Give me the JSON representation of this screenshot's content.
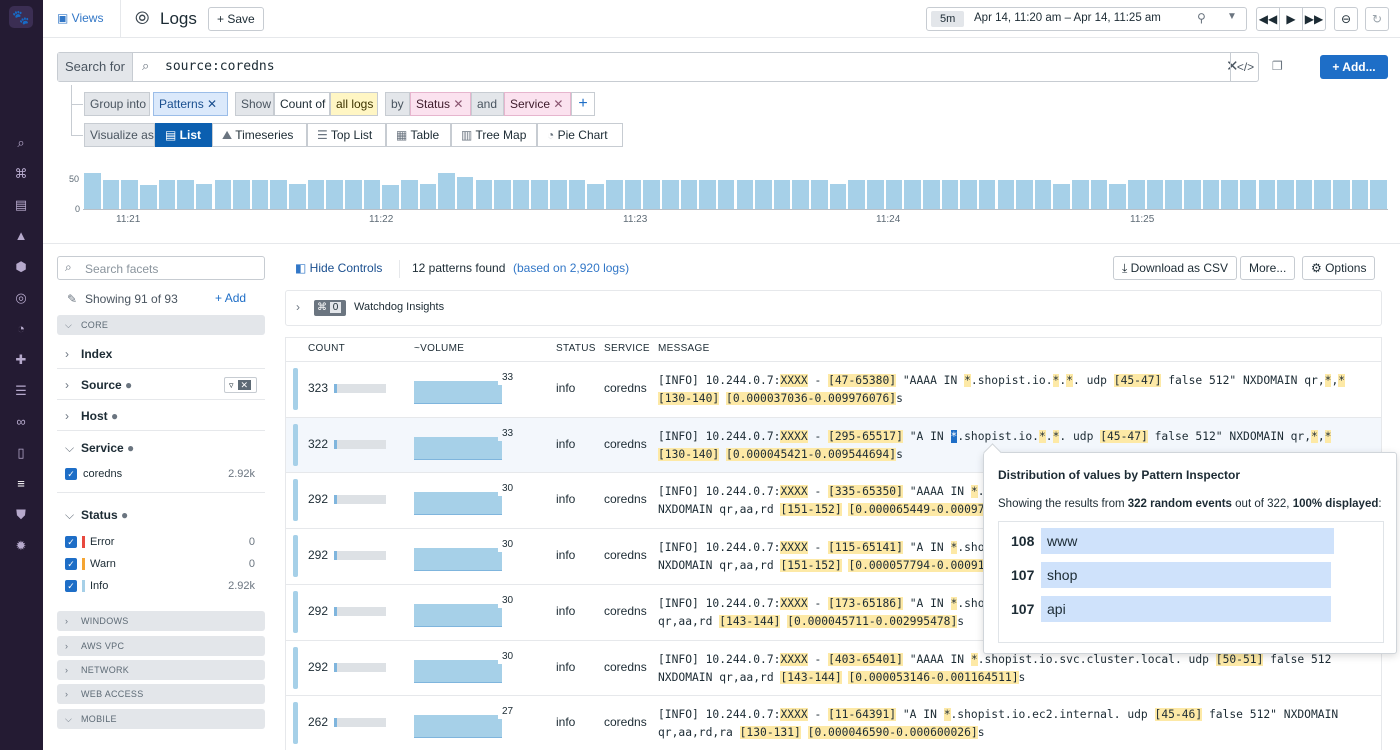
{
  "nav": {
    "icons": [
      "datadog-logo-icon",
      "search-icon",
      "binoculars-icon",
      "dashboard-icon",
      "chart-icon",
      "infrastructure-icon",
      "apm-icon",
      "monitors-icon",
      "integrations-icon",
      "pipelines-icon",
      "network-icon",
      "notebooks-icon",
      "logs-icon",
      "security-icon",
      "settings-icon"
    ]
  },
  "header": {
    "views_label": "Views",
    "title": "Logs",
    "save_label": "Save",
    "time_preset": "5m",
    "time_range": "Apr 14, 11:20 am – Apr 14, 11:25 am"
  },
  "search": {
    "label": "Search for",
    "query": "source:coredns",
    "add_label": "Add..."
  },
  "group": {
    "group_into": "Group into",
    "patterns": "Patterns",
    "show": "Show",
    "count_of": "Count of",
    "all_logs": "all logs",
    "by": "by",
    "status": "Status",
    "and": "and",
    "service": "Service"
  },
  "visualize": {
    "label": "Visualize as",
    "options": [
      "List",
      "Timeseries",
      "Top List",
      "Table",
      "Tree Map",
      "Pie Chart"
    ],
    "active": "List"
  },
  "histogram": {
    "y_ticks": [
      "50",
      "0"
    ],
    "x_ticks": [
      "11:21",
      "11:22",
      "11:23",
      "11:24",
      "11:25"
    ],
    "values": [
      59,
      48,
      48,
      39,
      48,
      48,
      41,
      48,
      48,
      48,
      48,
      41,
      48,
      48,
      48,
      48,
      39,
      48,
      41,
      59,
      52,
      48,
      48,
      48,
      48,
      48,
      48,
      41,
      48,
      48,
      48,
      48,
      48,
      48,
      48,
      48,
      48,
      48,
      48,
      48,
      41,
      48,
      48,
      48,
      48,
      48,
      48,
      48,
      48,
      48,
      48,
      48,
      41,
      48,
      48,
      41,
      48,
      48,
      48,
      48,
      48,
      48,
      48,
      48,
      48,
      48,
      48,
      48,
      48,
      48
    ]
  },
  "facets": {
    "search_placeholder": "Search facets",
    "showing": "Showing 91 of 93",
    "add_label": "Add",
    "core": "CORE",
    "index": "Index",
    "source": "Source",
    "host": "Host",
    "service": "Service",
    "service_value": "coredns",
    "service_count": "2.92k",
    "status": "Status",
    "status_values": [
      {
        "name": "Error",
        "count": "0",
        "color": "#e8493f"
      },
      {
        "name": "Warn",
        "count": "0",
        "color": "#f5a533"
      },
      {
        "name": "Info",
        "count": "2.92k",
        "color": "#a6d0e8"
      }
    ],
    "sections": [
      "WINDOWS",
      "AWS VPC",
      "NETWORK",
      "WEB ACCESS",
      "MOBILE"
    ]
  },
  "controls": {
    "hide_controls": "Hide Controls",
    "patterns_found": "12 patterns found",
    "based_on": "(based on 2,920 logs)",
    "download": "Download as CSV",
    "more": "More...",
    "options": "Options"
  },
  "watchdog": {
    "count": "0",
    "label": "Watchdog Insights"
  },
  "table": {
    "headers": [
      "COUNT",
      "~VOLUME",
      "STATUS",
      "SERVICE",
      "MESSAGE"
    ],
    "rows": [
      {
        "count": "323",
        "fill": 0.05,
        "spark_max": "33",
        "status": "info",
        "service": "coredns",
        "message": [
          [
            "[INFO] 10.244.0.7:",
            0
          ],
          [
            "XXXX",
            1
          ],
          [
            " - ",
            0
          ],
          [
            "[47-65380]",
            1
          ],
          [
            " \"AAAA IN ",
            0
          ],
          [
            "*",
            1
          ],
          [
            ".shopist.io.",
            0
          ],
          [
            "*",
            1
          ],
          [
            ".",
            0
          ],
          [
            "*",
            1
          ],
          [
            ". udp ",
            0
          ],
          [
            "[45-47]",
            1
          ],
          [
            " false 512\" NXDOMAIN qr,",
            0
          ],
          [
            "*",
            1
          ],
          [
            ",",
            0
          ],
          [
            "*",
            1
          ],
          [
            "\n",
            0
          ],
          [
            "[130-140]",
            1
          ],
          [
            " ",
            0
          ],
          [
            "[0.000037036-0.009976076]",
            1
          ],
          [
            "s",
            0
          ]
        ]
      },
      {
        "count": "322",
        "fill": 0.05,
        "spark_max": "33",
        "status": "info",
        "service": "coredns",
        "message": [
          [
            "[INFO] 10.244.0.7:",
            0
          ],
          [
            "XXXX",
            1
          ],
          [
            " - ",
            0
          ],
          [
            "[295-65517]",
            1
          ],
          [
            " \"A IN ",
            0
          ],
          [
            "*",
            2
          ],
          [
            ".shopist.io.",
            0
          ],
          [
            "*",
            1
          ],
          [
            ".",
            0
          ],
          [
            "*",
            1
          ],
          [
            ". udp ",
            0
          ],
          [
            "[45-47]",
            1
          ],
          [
            " false 512\" NXDOMAIN qr,",
            0
          ],
          [
            "*",
            1
          ],
          [
            ",",
            0
          ],
          [
            "*",
            1
          ],
          [
            "\n",
            0
          ],
          [
            "[130-140]",
            1
          ],
          [
            " ",
            0
          ],
          [
            "[0.000045421-0.009544694]",
            1
          ],
          [
            "s",
            0
          ]
        ]
      },
      {
        "count": "292",
        "fill": 0.05,
        "spark_max": "30",
        "status": "info",
        "service": "coredns",
        "message": [
          [
            "[INFO] 10.244.0.7:",
            0
          ],
          [
            "XXXX",
            1
          ],
          [
            " - ",
            0
          ],
          [
            "[335-65350]",
            1
          ],
          [
            " \"AAAA IN ",
            0
          ],
          [
            "*",
            1
          ],
          [
            ".shopist.io.svc.cluster.local. udp ",
            0
          ],
          [
            "[45-47]",
            1
          ],
          [
            " false 512\"\nNXDOMAIN qr,aa,rd ",
            0
          ],
          [
            "[151-152]",
            1
          ],
          [
            " ",
            0
          ],
          [
            "[0.000065449-0.000977015]",
            1
          ],
          [
            "s",
            0
          ]
        ]
      },
      {
        "count": "292",
        "fill": 0.05,
        "spark_max": "30",
        "status": "info",
        "service": "coredns",
        "message": [
          [
            "[INFO] 10.244.0.7:",
            0
          ],
          [
            "XXXX",
            1
          ],
          [
            " - ",
            0
          ],
          [
            "[115-65141]",
            1
          ],
          [
            " \"A IN ",
            0
          ],
          [
            "*",
            1
          ],
          [
            ".shopist.io.svc.cluster.local. udp ",
            0
          ],
          [
            "[45-47]",
            1
          ],
          [
            " false 512\"\nNXDOMAIN qr,aa,rd ",
            0
          ],
          [
            "[151-152]",
            1
          ],
          [
            " ",
            0
          ],
          [
            "[0.000057794-0.000913475]",
            1
          ],
          [
            "s",
            0
          ]
        ]
      },
      {
        "count": "292",
        "fill": 0.05,
        "spark_max": "30",
        "status": "info",
        "service": "coredns",
        "message": [
          [
            "[INFO] 10.244.0.7:",
            0
          ],
          [
            "XXXX",
            1
          ],
          [
            " - ",
            0
          ],
          [
            "[173-65186]",
            1
          ],
          [
            " \"A IN ",
            0
          ],
          [
            "*",
            1
          ],
          [
            ".shopist.io.cluster.local. udp ",
            0
          ],
          [
            "[45-47]",
            1
          ],
          [
            " false 512\" NXDOMAIN\nqr,aa,rd ",
            0
          ],
          [
            "[143-144]",
            1
          ],
          [
            " ",
            0
          ],
          [
            "[0.000045711-0.002995478]",
            1
          ],
          [
            "s",
            0
          ]
        ]
      },
      {
        "count": "292",
        "fill": 0.05,
        "spark_max": "30",
        "status": "info",
        "service": "coredns",
        "message": [
          [
            "[INFO] 10.244.0.7:",
            0
          ],
          [
            "XXXX",
            1
          ],
          [
            " - ",
            0
          ],
          [
            "[403-65401]",
            1
          ],
          [
            " \"AAAA IN ",
            0
          ],
          [
            "*",
            1
          ],
          [
            ".shopist.io.svc.cluster.local. udp ",
            0
          ],
          [
            "[50-51]",
            1
          ],
          [
            " false 512\nNXDOMAIN qr,aa,rd ",
            0
          ],
          [
            "[143-144]",
            1
          ],
          [
            " ",
            0
          ],
          [
            "[0.000053146-0.001164511]",
            1
          ],
          [
            "s",
            0
          ]
        ]
      },
      {
        "count": "262",
        "fill": 0.05,
        "spark_max": "27",
        "status": "info",
        "service": "coredns",
        "message": [
          [
            "[INFO] 10.244.0.7:",
            0
          ],
          [
            "XXXX",
            1
          ],
          [
            " - ",
            0
          ],
          [
            "[11-64391]",
            1
          ],
          [
            " \"A IN ",
            0
          ],
          [
            "*",
            1
          ],
          [
            ".shopist.io.ec2.internal. udp ",
            0
          ],
          [
            "[45-46]",
            1
          ],
          [
            " false 512\" NXDOMAIN\nqr,aa,rd,ra ",
            0
          ],
          [
            "[130-131]",
            1
          ],
          [
            " ",
            0
          ],
          [
            "[0.000046590-0.000600026]",
            1
          ],
          [
            "s",
            0
          ]
        ]
      }
    ]
  },
  "popover": {
    "title": "Distribution of values by Pattern Inspector",
    "desc_prefix": "Showing the results from ",
    "desc_bold1": "322 random events",
    "desc_mid": " out of 322, ",
    "desc_bold2": "100% displayed",
    "desc_suffix": ":",
    "items": [
      {
        "count": "108",
        "value": "www"
      },
      {
        "count": "107",
        "value": "shop"
      },
      {
        "count": "107",
        "value": "api"
      }
    ]
  }
}
